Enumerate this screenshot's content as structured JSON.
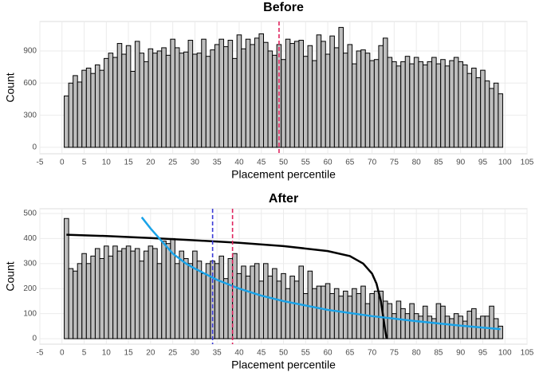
{
  "chart_data": [
    {
      "type": "histogram",
      "title": "Before",
      "xlabel": "Placement percentile",
      "ylabel": "Count",
      "bins": [
        0.5,
        1.5,
        2.5,
        3.5,
        4.5,
        5.5,
        6.5,
        7.5,
        8.5,
        9.5,
        10.5,
        11.5,
        12.5,
        13.5,
        14.5,
        15.5,
        16.5,
        17.5,
        18.5,
        19.5,
        20.5,
        21.5,
        22.5,
        23.5,
        24.5,
        25.5,
        26.5,
        27.5,
        28.5,
        29.5,
        30.5,
        31.5,
        32.5,
        33.5,
        34.5,
        35.5,
        36.5,
        37.5,
        38.5,
        39.5,
        40.5,
        41.5,
        42.5,
        43.5,
        44.5,
        45.5,
        46.5,
        47.5,
        48.5,
        49.5,
        50.5,
        51.5,
        52.5,
        53.5,
        54.5,
        55.5,
        56.5,
        57.5,
        58.5,
        59.5,
        60.5,
        61.5,
        62.5,
        63.5,
        64.5,
        65.5,
        66.5,
        67.5,
        68.5,
        69.5,
        70.5,
        71.5,
        72.5,
        73.5,
        74.5,
        75.5,
        76.5,
        77.5,
        78.5,
        79.5,
        80.5,
        81.5,
        82.5,
        83.5,
        84.5,
        85.5,
        86.5,
        87.5,
        88.5,
        89.5,
        90.5,
        91.5,
        92.5,
        93.5,
        94.5,
        95.5,
        96.5,
        97.5,
        98.5,
        99.5
      ],
      "counts": [
        480,
        600,
        670,
        610,
        720,
        740,
        690,
        770,
        720,
        830,
        880,
        840,
        970,
        870,
        950,
        710,
        990,
        880,
        800,
        920,
        880,
        900,
        930,
        860,
        1010,
        930,
        880,
        890,
        1000,
        870,
        880,
        1010,
        850,
        910,
        960,
        1010,
        940,
        1000,
        830,
        1050,
        920,
        1010,
        960,
        1020,
        1060,
        980,
        900,
        860,
        960,
        820,
        1010,
        970,
        990,
        1000,
        850,
        950,
        810,
        1050,
        990,
        870,
        1040,
        930,
        1120,
        880,
        960,
        780,
        900,
        910,
        880,
        810,
        820,
        950,
        1020,
        840,
        800,
        760,
        800,
        850,
        780,
        840,
        800,
        770,
        800,
        840,
        780,
        820,
        760,
        810,
        840,
        800,
        770,
        690,
        740,
        650,
        720,
        620,
        550,
        600,
        500
      ],
      "color": "#bebebe",
      "vlines": [
        {
          "x": 49,
          "color": "#e0245e"
        }
      ],
      "xlim": [
        -5,
        105
      ],
      "xticks": [
        -5,
        0,
        5,
        10,
        15,
        20,
        25,
        30,
        35,
        40,
        45,
        50,
        55,
        60,
        65,
        70,
        75,
        80,
        85,
        90,
        95,
        100,
        105
      ],
      "ylim": [
        -60,
        1175
      ],
      "yticks": [
        0,
        300,
        600,
        900
      ],
      "grid": true
    },
    {
      "type": "histogram",
      "title": "After",
      "xlabel": "Placement percentile",
      "ylabel": "Count",
      "bins": [
        0.5,
        1.5,
        2.5,
        3.5,
        4.5,
        5.5,
        6.5,
        7.5,
        8.5,
        9.5,
        10.5,
        11.5,
        12.5,
        13.5,
        14.5,
        15.5,
        16.5,
        17.5,
        18.5,
        19.5,
        20.5,
        21.5,
        22.5,
        23.5,
        24.5,
        25.5,
        26.5,
        27.5,
        28.5,
        29.5,
        30.5,
        31.5,
        32.5,
        33.5,
        34.5,
        35.5,
        36.5,
        37.5,
        38.5,
        39.5,
        40.5,
        41.5,
        42.5,
        43.5,
        44.5,
        45.5,
        46.5,
        47.5,
        48.5,
        49.5,
        50.5,
        51.5,
        52.5,
        53.5,
        54.5,
        55.5,
        56.5,
        57.5,
        58.5,
        59.5,
        60.5,
        61.5,
        62.5,
        63.5,
        64.5,
        65.5,
        66.5,
        67.5,
        68.5,
        69.5,
        70.5,
        71.5,
        72.5,
        73.5,
        74.5,
        75.5,
        76.5,
        77.5,
        78.5,
        79.5,
        80.5,
        81.5,
        82.5,
        83.5,
        84.5,
        85.5,
        86.5,
        87.5,
        88.5,
        89.5,
        90.5,
        91.5,
        92.5,
        93.5,
        94.5,
        95.5,
        96.5,
        97.5,
        98.5,
        99.5
      ],
      "counts": [
        480,
        280,
        270,
        300,
        340,
        300,
        330,
        360,
        320,
        370,
        330,
        370,
        350,
        360,
        370,
        350,
        360,
        310,
        350,
        370,
        360,
        300,
        390,
        380,
        400,
        300,
        350,
        320,
        300,
        350,
        310,
        260,
        300,
        310,
        300,
        330,
        240,
        320,
        340,
        260,
        290,
        250,
        290,
        300,
        230,
        300,
        250,
        280,
        230,
        260,
        200,
        250,
        230,
        290,
        180,
        270,
        200,
        210,
        210,
        220,
        180,
        200,
        170,
        190,
        170,
        200,
        180,
        210,
        140,
        180,
        190,
        190,
        150,
        140,
        100,
        150,
        120,
        100,
        140,
        100,
        90,
        130,
        90,
        80,
        140,
        130,
        90,
        80,
        100,
        90,
        70,
        110,
        120,
        80,
        90,
        90,
        130,
        80,
        50
      ],
      "color": "#bebebe",
      "series": [
        {
          "color": "#000000",
          "x": [
            1,
            10,
            20,
            30,
            40,
            50,
            60,
            65,
            68,
            70,
            71,
            72,
            72.5,
            73,
            73.3
          ],
          "values": [
            415,
            410,
            402,
            393,
            383,
            370,
            350,
            330,
            300,
            260,
            220,
            150,
            90,
            30,
            0
          ]
        },
        {
          "color": "#1aa3e8",
          "x": [
            18,
            20,
            22,
            25,
            28,
            30,
            35,
            40,
            45,
            50,
            60,
            70,
            80,
            90,
            99
          ],
          "values": [
            485,
            440,
            400,
            340,
            300,
            280,
            235,
            200,
            172,
            150,
            115,
            90,
            70,
            52,
            38
          ]
        }
      ],
      "vlines": [
        {
          "x": 34,
          "color": "#3b3bd6"
        },
        {
          "x": 38.5,
          "color": "#e0245e"
        }
      ],
      "xlim": [
        -5,
        105
      ],
      "xticks": [
        -5,
        0,
        5,
        10,
        15,
        20,
        25,
        30,
        35,
        40,
        45,
        50,
        55,
        60,
        65,
        70,
        75,
        80,
        85,
        90,
        95,
        100,
        105
      ],
      "ylim": [
        -22,
        519
      ],
      "yticks": [
        0,
        100,
        200,
        300,
        400,
        500
      ],
      "grid": true
    }
  ]
}
